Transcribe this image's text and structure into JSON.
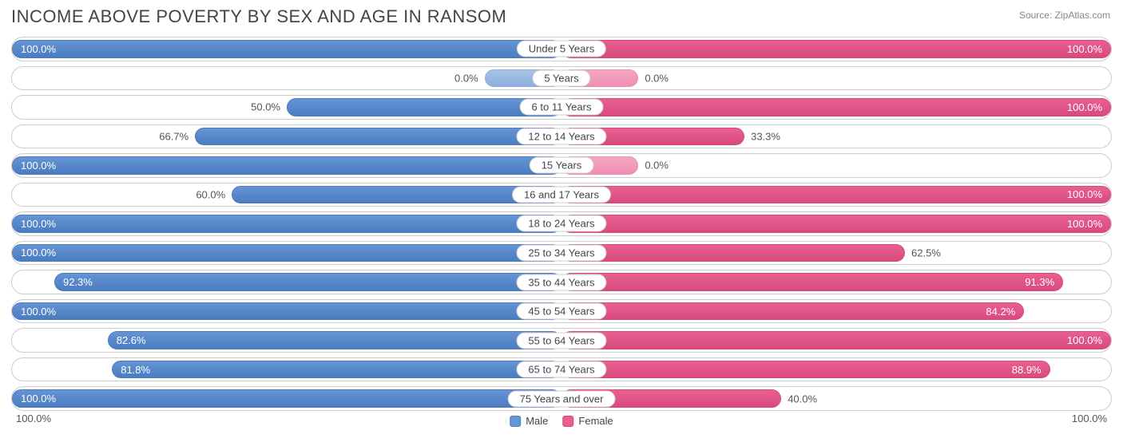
{
  "title": "INCOME ABOVE POVERTY BY SEX AND AGE IN RANSOM",
  "source": "Source: ZipAtlas.com",
  "colors": {
    "male_fill": "#6694d4",
    "male_border": "#4a7cc0",
    "female_fill": "#e96091",
    "female_border": "#d84a7e",
    "track_border": "#cccccc",
    "text": "#555555",
    "zero_male_fill": "#a7c2e6",
    "zero_male_border": "#8db0dc",
    "zero_female_fill": "#f4a6c3",
    "zero_female_border": "#ef8fb3"
  },
  "legend": {
    "male": "Male",
    "female": "Female"
  },
  "axis": {
    "left": "100.0%",
    "right": "100.0%"
  },
  "min_bar_pct": 9,
  "rows": [
    {
      "label": "Under 5 Years",
      "male": 100.0,
      "female": 100.0,
      "male_txt": "100.0%",
      "female_txt": "100.0%",
      "male_zero": false,
      "female_zero": false
    },
    {
      "label": "5 Years",
      "male": 0.0,
      "female": 0.0,
      "male_txt": "0.0%",
      "female_txt": "0.0%",
      "male_zero": true,
      "female_zero": true
    },
    {
      "label": "6 to 11 Years",
      "male": 50.0,
      "female": 100.0,
      "male_txt": "50.0%",
      "female_txt": "100.0%",
      "male_zero": false,
      "female_zero": false
    },
    {
      "label": "12 to 14 Years",
      "male": 66.7,
      "female": 33.3,
      "male_txt": "66.7%",
      "female_txt": "33.3%",
      "male_zero": false,
      "female_zero": false
    },
    {
      "label": "15 Years",
      "male": 100.0,
      "female": 0.0,
      "male_txt": "100.0%",
      "female_txt": "0.0%",
      "male_zero": false,
      "female_zero": true
    },
    {
      "label": "16 and 17 Years",
      "male": 60.0,
      "female": 100.0,
      "male_txt": "60.0%",
      "female_txt": "100.0%",
      "male_zero": false,
      "female_zero": false
    },
    {
      "label": "18 to 24 Years",
      "male": 100.0,
      "female": 100.0,
      "male_txt": "100.0%",
      "female_txt": "100.0%",
      "male_zero": false,
      "female_zero": false
    },
    {
      "label": "25 to 34 Years",
      "male": 100.0,
      "female": 62.5,
      "male_txt": "100.0%",
      "female_txt": "62.5%",
      "male_zero": false,
      "female_zero": false
    },
    {
      "label": "35 to 44 Years",
      "male": 92.3,
      "female": 91.3,
      "male_txt": "92.3%",
      "female_txt": "91.3%",
      "male_zero": false,
      "female_zero": false
    },
    {
      "label": "45 to 54 Years",
      "male": 100.0,
      "female": 84.2,
      "male_txt": "100.0%",
      "female_txt": "84.2%",
      "male_zero": false,
      "female_zero": false
    },
    {
      "label": "55 to 64 Years",
      "male": 82.6,
      "female": 100.0,
      "male_txt": "82.6%",
      "female_txt": "100.0%",
      "male_zero": false,
      "female_zero": false
    },
    {
      "label": "65 to 74 Years",
      "male": 81.8,
      "female": 88.9,
      "male_txt": "81.8%",
      "female_txt": "88.9%",
      "male_zero": false,
      "female_zero": false
    },
    {
      "label": "75 Years and over",
      "male": 100.0,
      "female": 40.0,
      "male_txt": "100.0%",
      "female_txt": "40.0%",
      "male_zero": false,
      "female_zero": false
    }
  ]
}
